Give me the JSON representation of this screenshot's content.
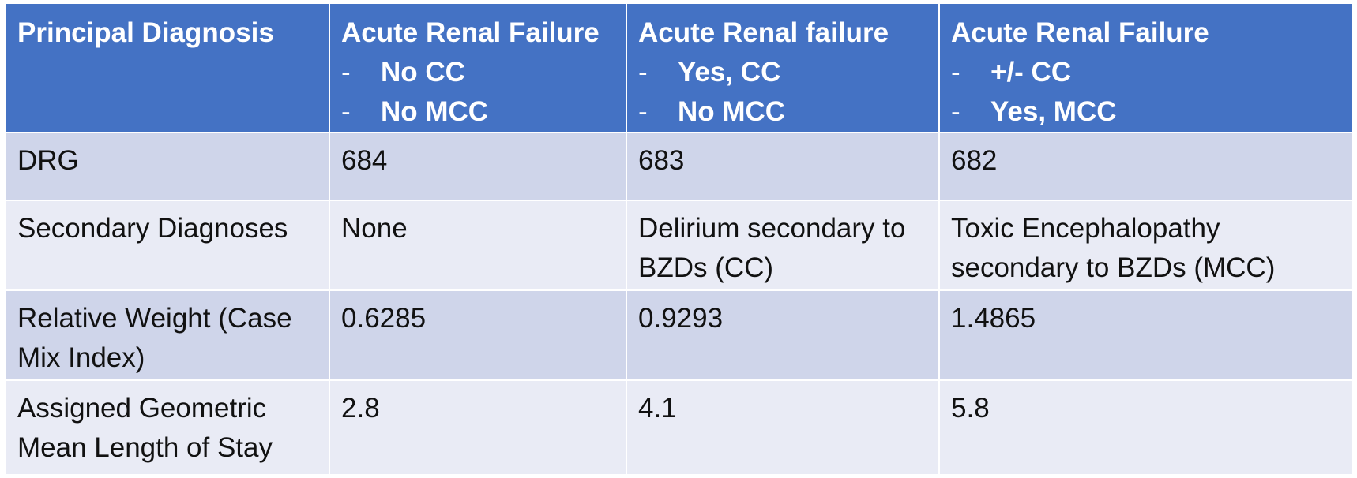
{
  "table": {
    "header": {
      "col0": "Principal Diagnosis",
      "col1": {
        "title": "Acute Renal Failure",
        "items": [
          "No CC",
          "No MCC"
        ]
      },
      "col2": {
        "title": "Acute Renal failure",
        "items": [
          "Yes, CC",
          "No MCC"
        ]
      },
      "col3": {
        "title": "Acute Renal Failure",
        "items": [
          "+/- CC",
          "Yes, MCC"
        ]
      },
      "bullet": "-"
    },
    "rows": [
      {
        "label": "DRG",
        "values": [
          "684",
          "683",
          "682"
        ]
      },
      {
        "label": "Secondary Diagnoses",
        "values": [
          "None",
          "Delirium secondary to BZDs (CC)",
          "Toxic Encephalopathy secondary to BZDs (MCC)"
        ]
      },
      {
        "label": "Relative Weight (Case Mix Index)",
        "values": [
          "0.6285",
          "0.9293",
          "1.4865"
        ]
      },
      {
        "label": "Assigned Geometric Mean Length of Stay",
        "values": [
          "2.8",
          "4.1",
          "5.8"
        ]
      }
    ]
  }
}
